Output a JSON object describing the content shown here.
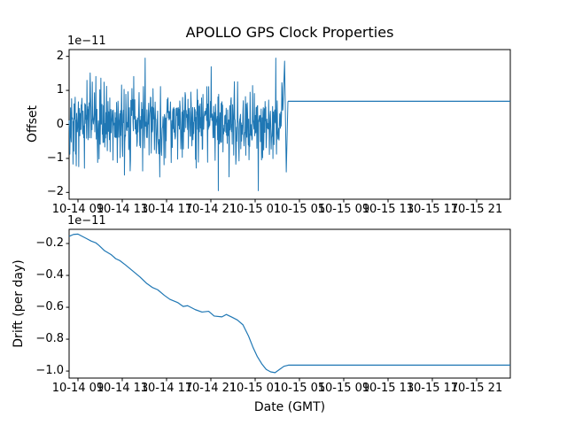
{
  "figure": {
    "background": "#ffffff",
    "line_color": "#1f77b4",
    "text_color": "#000000"
  },
  "chart_data": [
    {
      "type": "line",
      "title": "APOLLO GPS Clock Properties",
      "ylabel": "Offset",
      "xlabel": "",
      "y_scale_label": "1e−11",
      "values_scale": 1e-11,
      "grid": false,
      "legend": null,
      "ylim": [
        -2.2,
        2.2
      ],
      "yticks": [
        2,
        1,
        0,
        -1,
        -2
      ],
      "ytick_labels": [
        "2",
        "1",
        "0",
        "−1",
        "−2"
      ],
      "x_hours_lim": [
        8.2,
        48.04
      ],
      "xticks_hours": [
        9,
        13,
        17,
        21,
        25,
        29,
        33,
        37,
        41,
        45
      ],
      "xtick_labels": [
        "10-14 09",
        "10-14 13",
        "10-14 17",
        "10-14 21",
        "10-15 01",
        "10-15 05",
        "10-15 09",
        "10-15 13",
        "10-15 17",
        "10-15 21"
      ],
      "series": [
        {
          "name": "offset-noisy-measurements",
          "x_start_hours": 8.2,
          "x_end_hours": 27.96,
          "synthesis": {
            "kind": "dense-noise-around-zero",
            "seed": 20201014,
            "n": 600,
            "mean": 0.05,
            "std": 0.55,
            "clamp": [
              -1.95,
              1.95
            ],
            "spike_probability": 0.04,
            "spike_gain": 2.1,
            "end_values": [
              1.86,
              -1.4,
              0.68
            ]
          }
        },
        {
          "name": "offset-steady-line",
          "x_hours": [
            27.96,
            48.04
          ],
          "values": [
            0.68,
            0.68
          ]
        }
      ]
    },
    {
      "type": "line",
      "title": "",
      "ylabel": "Drift (per day)",
      "xlabel": "Date (GMT)",
      "y_scale_label": "1e−11",
      "values_scale": 1e-11,
      "grid": false,
      "legend": null,
      "ylim": [
        -1.044,
        -0.111
      ],
      "yticks": [
        -0.2,
        -0.4,
        -0.6,
        -0.8,
        -1.0
      ],
      "ytick_labels": [
        "−0.2",
        "−0.4",
        "−0.6",
        "−0.8",
        "−1.0"
      ],
      "x_hours_lim": [
        8.2,
        48.04
      ],
      "xticks_hours": [
        9,
        13,
        17,
        21,
        25,
        29,
        33,
        37,
        41,
        45
      ],
      "xtick_labels": [
        "10-14 09",
        "10-14 13",
        "10-14 17",
        "10-14 21",
        "10-15 01",
        "10-15 05",
        "10-15 09",
        "10-15 13",
        "10-15 17",
        "10-15 21"
      ],
      "series": [
        {
          "name": "drift-curve",
          "x_hours": [
            8.2,
            8.6,
            9.0,
            9.3,
            9.8,
            10.2,
            10.6,
            10.9,
            11.4,
            12.0,
            12.4,
            12.8,
            13.3,
            14.0,
            14.6,
            15.2,
            15.7,
            16.2,
            16.8,
            17.3,
            18.0,
            18.5,
            18.9,
            19.6,
            20.2,
            20.8,
            21.3,
            22.0,
            22.4,
            22.9,
            23.4,
            23.9,
            24.4,
            24.8,
            25.2,
            25.6,
            26.0,
            26.4,
            26.8,
            27.2,
            27.6,
            28.0,
            48.04
          ],
          "values": [
            -0.155,
            -0.143,
            -0.141,
            -0.152,
            -0.17,
            -0.185,
            -0.195,
            -0.212,
            -0.245,
            -0.27,
            -0.295,
            -0.308,
            -0.335,
            -0.375,
            -0.41,
            -0.45,
            -0.475,
            -0.49,
            -0.525,
            -0.55,
            -0.57,
            -0.595,
            -0.59,
            -0.615,
            -0.63,
            -0.625,
            -0.655,
            -0.66,
            -0.645,
            -0.662,
            -0.68,
            -0.71,
            -0.78,
            -0.85,
            -0.91,
            -0.955,
            -0.99,
            -1.005,
            -1.01,
            -0.99,
            -0.97,
            -0.963,
            -0.963
          ]
        }
      ]
    }
  ]
}
